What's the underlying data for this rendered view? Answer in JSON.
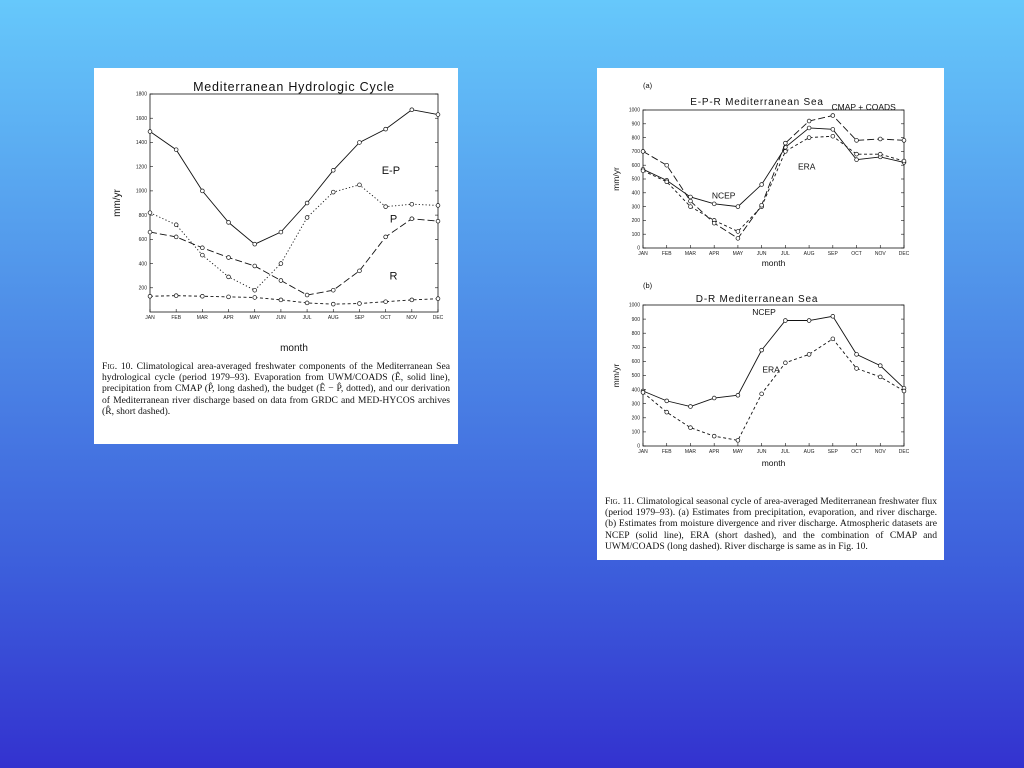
{
  "fig10": {
    "caption_prefix": "Fig. 10.",
    "caption": "Climatological area-averaged freshwater components of the Mediterranean Sea hydrological cycle (period 1979–93). Evaporation from UWM/COADS (Ê, solid line), precipitation from CMAP (P̂, long dashed), the budget (Ê − P̂, dotted), and our derivation of Mediterranean river discharge based on data from GRDC and MED-HYCOS archives (R̂, short dashed)."
  },
  "fig11": {
    "caption_prefix": "Fig. 11.",
    "caption": "Climatological seasonal cycle of area-averaged Mediterranean freshwater flux (period 1979–93). (a) Estimates from precipitation, evaporation, and river discharge. (b) Estimates from moisture divergence and river discharge. Atmospheric datasets are NCEP (solid line), ERA (short dashed), and the combination of CMAP and UWM/COADS (long dashed). River discharge is same as in Fig. 10."
  },
  "chart_data": [
    {
      "type": "line",
      "title": "Mediterranean Hydrologic Cycle",
      "xlabel": "month",
      "ylabel": "mm/yr",
      "categories": [
        "JAN",
        "FEB",
        "MAR",
        "APR",
        "MAY",
        "JUN",
        "JUL",
        "AUG",
        "SEP",
        "OCT",
        "NOV",
        "DEC"
      ],
      "ylim": [
        0,
        1800
      ],
      "yticks": [
        200,
        400,
        600,
        800,
        1000,
        1200,
        1400,
        1600,
        1800
      ],
      "series": [
        {
          "name": "E",
          "style": "solid",
          "values": [
            1490,
            1340,
            1000,
            740,
            560,
            660,
            900,
            1170,
            1400,
            1510,
            1670,
            1630
          ]
        },
        {
          "name": "E-P",
          "style": "dotted",
          "values": [
            820,
            720,
            470,
            290,
            180,
            400,
            780,
            990,
            1050,
            870,
            890,
            880
          ]
        },
        {
          "name": "P",
          "style": "long-dashed",
          "values": [
            660,
            620,
            530,
            450,
            380,
            260,
            140,
            180,
            340,
            620,
            770,
            750
          ]
        },
        {
          "name": "R",
          "style": "short-dashed",
          "values": [
            130,
            135,
            130,
            125,
            120,
            100,
            75,
            65,
            70,
            85,
            100,
            110
          ]
        }
      ]
    },
    {
      "type": "line",
      "panel_label": "(a)",
      "title": "E-P-R Mediterranean Sea",
      "xlabel": "month",
      "ylabel": "mm/yr",
      "categories": [
        "JAN",
        "FEB",
        "MAR",
        "APR",
        "MAY",
        "JUN",
        "JUL",
        "AUG",
        "SEP",
        "OCT",
        "NOV",
        "DEC"
      ],
      "ylim": [
        0,
        1000
      ],
      "yticks": [
        0,
        100,
        200,
        300,
        400,
        500,
        600,
        700,
        800,
        900,
        1000
      ],
      "series": [
        {
          "name": "NCEP",
          "style": "solid",
          "values": [
            570,
            490,
            370,
            320,
            300,
            460,
            730,
            870,
            860,
            640,
            660,
            620
          ]
        },
        {
          "name": "ERA",
          "style": "short-dashed",
          "values": [
            560,
            480,
            300,
            200,
            120,
            300,
            700,
            800,
            810,
            680,
            680,
            630
          ]
        },
        {
          "name": "CMAP + COADS",
          "style": "long-dashed",
          "values": [
            700,
            600,
            340,
            180,
            70,
            310,
            760,
            920,
            960,
            780,
            790,
            780
          ]
        }
      ]
    },
    {
      "type": "line",
      "panel_label": "(b)",
      "title": "D-R Mediterranean Sea",
      "xlabel": "month",
      "ylabel": "mm/yr",
      "categories": [
        "JAN",
        "FEB",
        "MAR",
        "APR",
        "MAY",
        "JUN",
        "JUL",
        "AUG",
        "SEP",
        "OCT",
        "NOV",
        "DEC"
      ],
      "ylim": [
        0,
        1000
      ],
      "yticks": [
        0,
        100,
        200,
        300,
        400,
        500,
        600,
        700,
        800,
        900,
        1000
      ],
      "series": [
        {
          "name": "NCEP",
          "style": "solid",
          "values": [
            390,
            320,
            280,
            340,
            360,
            680,
            890,
            890,
            920,
            650,
            570,
            410
          ]
        },
        {
          "name": "ERA",
          "style": "short-dashed",
          "values": [
            380,
            240,
            130,
            70,
            40,
            370,
            590,
            650,
            760,
            550,
            490,
            390
          ]
        }
      ]
    }
  ]
}
